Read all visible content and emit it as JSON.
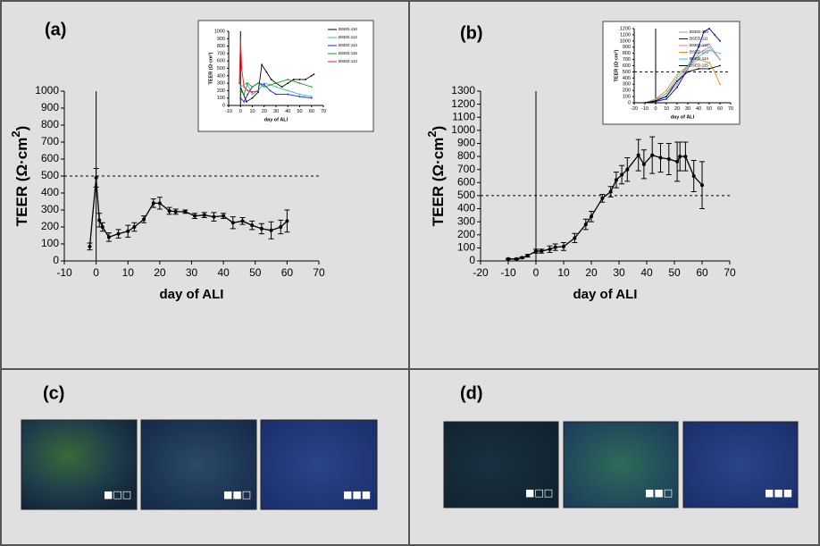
{
  "chart_data": [
    {
      "type": "line",
      "x_label": "day of ALI",
      "y_label": [
        "TEER (Ω·cm",
        "2",
        ")"
      ],
      "color": "#000000",
      "x": [
        -2,
        0,
        1,
        2,
        4,
        7,
        10,
        12,
        15,
        18,
        20,
        23,
        25,
        28,
        31,
        34,
        37,
        40,
        43,
        46,
        49,
        52,
        55,
        58,
        60
      ],
      "values": [
        85,
        490,
        240,
        200,
        140,
        160,
        175,
        200,
        245,
        340,
        340,
        295,
        290,
        290,
        265,
        270,
        260,
        265,
        225,
        235,
        210,
        190,
        180,
        200,
        235
      ],
      "errors": [
        20,
        55,
        40,
        25,
        25,
        25,
        35,
        25,
        20,
        25,
        35,
        20,
        15,
        10,
        15,
        15,
        25,
        15,
        35,
        20,
        25,
        30,
        50,
        40,
        65
      ],
      "xlim": [
        -10,
        70
      ],
      "xticks": [
        -10,
        0,
        10,
        20,
        30,
        40,
        50,
        60,
        70
      ],
      "ylim": [
        0,
        1000
      ],
      "yticks": [
        0,
        100,
        200,
        300,
        400,
        500,
        600,
        700,
        800,
        900,
        1000
      ],
      "hline": 500,
      "vline": 0
    },
    {
      "type": "line",
      "x_label": "day of ALI",
      "y_label": "TEER (Ω·cm²)",
      "xlim": [
        -10,
        70
      ],
      "xticks": [
        -10,
        0,
        10,
        20,
        30,
        40,
        50,
        60,
        70
      ],
      "ylim": [
        0,
        1000
      ],
      "yticks": [
        0,
        100,
        200,
        300,
        400,
        500,
        600,
        700,
        800,
        900,
        1000
      ],
      "vline": 0,
      "series": [
        {
          "name": "BSED-110",
          "color": "#000000",
          "x": [
            0,
            5,
            10,
            15,
            18,
            22,
            26,
            30,
            35,
            40,
            45,
            50,
            55,
            60,
            62
          ],
          "values": [
            250,
            50,
            100,
            180,
            550,
            450,
            350,
            300,
            250,
            300,
            350,
            350,
            350,
            400,
            420
          ]
        },
        {
          "name": "BSED-112",
          "color": "#33bbbb",
          "x": [
            0,
            5,
            10,
            15,
            20,
            25,
            30,
            40,
            50,
            60
          ],
          "values": [
            250,
            300,
            150,
            200,
            300,
            280,
            250,
            200,
            150,
            120
          ]
        },
        {
          "name": "BSED-114",
          "color": "#1a1aff",
          "x": [
            0,
            3,
            6,
            10,
            15,
            20,
            25,
            30,
            40,
            50,
            60
          ],
          "values": [
            100,
            50,
            150,
            250,
            300,
            280,
            200,
            150,
            150,
            120,
            100
          ]
        },
        {
          "name": "BSED-115",
          "color": "#1a9a1a",
          "x": [
            0,
            3,
            6,
            10,
            15,
            20,
            30,
            40,
            50,
            60
          ],
          "values": [
            200,
            150,
            300,
            250,
            300,
            250,
            300,
            350,
            300,
            250
          ]
        },
        {
          "name": "BSED-113",
          "color": "#e02020",
          "x": [
            -1,
            0,
            1,
            3,
            6,
            10,
            15
          ],
          "values": [
            300,
            900,
            500,
            250,
            200,
            180,
            200
          ]
        }
      ]
    },
    {
      "type": "line",
      "x_label": "day of ALI",
      "y_label": [
        "TEER (Ω·cm",
        "2",
        ")"
      ],
      "color": "#000000",
      "x": [
        -10,
        -7,
        -5,
        -3,
        0,
        2,
        5,
        7,
        10,
        14,
        18,
        20,
        24,
        27,
        29,
        31,
        33,
        37,
        39,
        42,
        45,
        48,
        51,
        52,
        54,
        57,
        60
      ],
      "values": [
        15,
        15,
        25,
        40,
        75,
        75,
        90,
        105,
        110,
        175,
        280,
        340,
        480,
        530,
        620,
        660,
        700,
        810,
        740,
        810,
        790,
        780,
        760,
        800,
        800,
        650,
        580
      ],
      "errors": [
        5,
        5,
        5,
        10,
        15,
        15,
        25,
        25,
        30,
        35,
        40,
        40,
        30,
        40,
        60,
        70,
        90,
        120,
        110,
        140,
        110,
        120,
        150,
        110,
        110,
        120,
        180
      ],
      "xlim": [
        -20,
        70
      ],
      "xticks": [
        -20,
        -10,
        0,
        10,
        20,
        30,
        40,
        50,
        60,
        70
      ],
      "ylim": [
        0,
        1300
      ],
      "yticks": [
        0,
        100,
        200,
        300,
        400,
        500,
        600,
        700,
        800,
        900,
        1000,
        1100,
        1200,
        1300
      ],
      "hline": 500,
      "vline": 0
    },
    {
      "type": "line",
      "x_label": "day of ALI",
      "y_label": "TEER (Ω·cm²)",
      "xlim": [
        -20,
        70
      ],
      "xticks": [
        -20,
        -10,
        0,
        10,
        20,
        30,
        40,
        50,
        60,
        70
      ],
      "ylim": [
        0,
        1200
      ],
      "yticks": [
        0,
        100,
        200,
        300,
        400,
        500,
        600,
        700,
        800,
        900,
        1000,
        1100,
        1200
      ],
      "hline": 500,
      "vline": 0,
      "series": [
        {
          "name": "BSED-110",
          "color": "#9999dd",
          "x": [
            -10,
            0,
            10,
            20,
            30,
            40,
            50,
            60
          ],
          "values": [
            0,
            50,
            100,
            300,
            600,
            900,
            950,
            700
          ]
        },
        {
          "name": "BSED-111",
          "color": "#0000cc",
          "x": [
            -10,
            0,
            10,
            20,
            30,
            40,
            45,
            50,
            55,
            60
          ],
          "values": [
            0,
            20,
            60,
            250,
            550,
            900,
            1150,
            1200,
            1100,
            1000
          ]
        },
        {
          "name": "BSED-112",
          "color": "#ee7799",
          "x": [
            -10,
            0,
            10,
            20,
            30,
            40,
            50,
            60
          ],
          "values": [
            0,
            50,
            150,
            350,
            550,
            800,
            900,
            700
          ]
        },
        {
          "name": "BSED-113",
          "color": "#ee8822",
          "x": [
            -10,
            0,
            10,
            20,
            30,
            40,
            50,
            55,
            60
          ],
          "values": [
            0,
            60,
            200,
            450,
            600,
            700,
            650,
            500,
            300
          ]
        },
        {
          "name": "BSED-114",
          "color": "#33cccc",
          "x": [
            -10,
            0,
            10,
            20,
            30,
            40,
            50,
            60
          ],
          "values": [
            0,
            40,
            150,
            400,
            600,
            750,
            850,
            800
          ]
        },
        {
          "name": "BSED-115",
          "color": "#000000",
          "x": [
            -10,
            0,
            10,
            20,
            30,
            40,
            50,
            60
          ],
          "values": [
            0,
            30,
            100,
            350,
            500,
            550,
            550,
            600
          ]
        }
      ]
    }
  ],
  "labels": {
    "a": "(a)",
    "b": "(b)",
    "c": "(c)",
    "d": "(d)"
  },
  "images": {
    "c": [
      "■□□",
      "■■□",
      "■■■"
    ],
    "d": [
      "■□□",
      "■■□",
      "■■■"
    ]
  }
}
